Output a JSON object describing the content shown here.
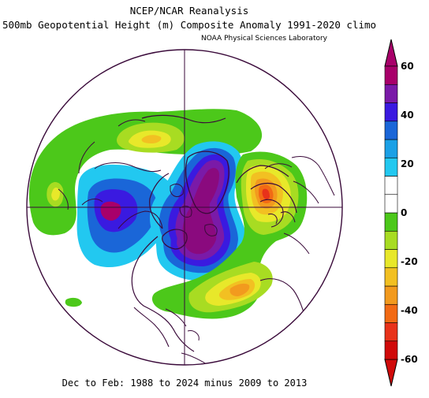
{
  "header": {
    "title_line1": "NCEP/NCAR Reanalysis",
    "title_line2": "500mb Geopotential Height (m) Composite Anomaly 1991-2020 climo",
    "credit": "NOAA Physical Sciences Laboratory"
  },
  "footer": {
    "period": "Dec to Feb: 1988 to 2024 minus 2009 to 2013"
  },
  "map": {
    "projection": "north polar stereographic",
    "variable": "500mb geopotential height anomaly",
    "units": "m",
    "map_line_color": "#3a0a3a"
  },
  "colorbar": {
    "tick_labels": [
      "60",
      "40",
      "20",
      "0",
      "-20",
      "-40",
      "-60"
    ],
    "colors": [
      "#a8006a",
      "#7a1aa8",
      "#3a1ae0",
      "#1a66d8",
      "#1aa0e6",
      "#22c8f0",
      "#ffffff",
      "#ffffff",
      "#4cc81a",
      "#a8dc22",
      "#e8e82a",
      "#f2c022",
      "#f29a1e",
      "#f26a14",
      "#e8321a",
      "#d00a0a"
    ]
  }
}
